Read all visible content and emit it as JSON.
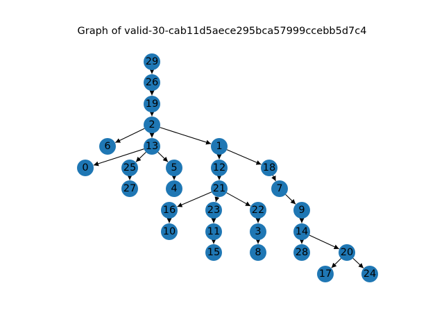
{
  "title": "Graph of valid-30-cab11d5aece295bca57999ccebb5d7c4",
  "node_color": "#1f77b4",
  "edge_color": "#000000",
  "nodes": [
    {
      "id": "29",
      "label": "29"
    },
    {
      "id": "26",
      "label": "26"
    },
    {
      "id": "19",
      "label": "19"
    },
    {
      "id": "2",
      "label": "2"
    },
    {
      "id": "6",
      "label": "6"
    },
    {
      "id": "13",
      "label": "13"
    },
    {
      "id": "1",
      "label": "1"
    },
    {
      "id": "0",
      "label": "0"
    },
    {
      "id": "25",
      "label": "25"
    },
    {
      "id": "5",
      "label": "5"
    },
    {
      "id": "12",
      "label": "12"
    },
    {
      "id": "18",
      "label": "18"
    },
    {
      "id": "27",
      "label": "27"
    },
    {
      "id": "4",
      "label": "4"
    },
    {
      "id": "21",
      "label": "21"
    },
    {
      "id": "7",
      "label": "7"
    },
    {
      "id": "16",
      "label": "16"
    },
    {
      "id": "23",
      "label": "23"
    },
    {
      "id": "22",
      "label": "22"
    },
    {
      "id": "9",
      "label": "9"
    },
    {
      "id": "10",
      "label": "10"
    },
    {
      "id": "11",
      "label": "11"
    },
    {
      "id": "3",
      "label": "3"
    },
    {
      "id": "14",
      "label": "14"
    },
    {
      "id": "15",
      "label": "15"
    },
    {
      "id": "8",
      "label": "8"
    },
    {
      "id": "28",
      "label": "28"
    },
    {
      "id": "20",
      "label": "20"
    },
    {
      "id": "17",
      "label": "17"
    },
    {
      "id": "24",
      "label": "24"
    }
  ],
  "edges": [
    {
      "from": "29",
      "to": "26"
    },
    {
      "from": "26",
      "to": "19"
    },
    {
      "from": "19",
      "to": "2"
    },
    {
      "from": "2",
      "to": "6"
    },
    {
      "from": "2",
      "to": "13"
    },
    {
      "from": "2",
      "to": "1"
    },
    {
      "from": "13",
      "to": "0"
    },
    {
      "from": "13",
      "to": "25"
    },
    {
      "from": "13",
      "to": "5"
    },
    {
      "from": "25",
      "to": "27"
    },
    {
      "from": "5",
      "to": "4"
    },
    {
      "from": "1",
      "to": "12"
    },
    {
      "from": "1",
      "to": "18"
    },
    {
      "from": "12",
      "to": "21"
    },
    {
      "from": "21",
      "to": "16"
    },
    {
      "from": "21",
      "to": "23"
    },
    {
      "from": "21",
      "to": "22"
    },
    {
      "from": "16",
      "to": "10"
    },
    {
      "from": "23",
      "to": "11"
    },
    {
      "from": "11",
      "to": "15"
    },
    {
      "from": "22",
      "to": "3"
    },
    {
      "from": "3",
      "to": "8"
    },
    {
      "from": "18",
      "to": "7"
    },
    {
      "from": "7",
      "to": "9"
    },
    {
      "from": "9",
      "to": "14"
    },
    {
      "from": "14",
      "to": "28"
    },
    {
      "from": "14",
      "to": "20"
    },
    {
      "from": "20",
      "to": "17"
    },
    {
      "from": "20",
      "to": "24"
    }
  ]
}
